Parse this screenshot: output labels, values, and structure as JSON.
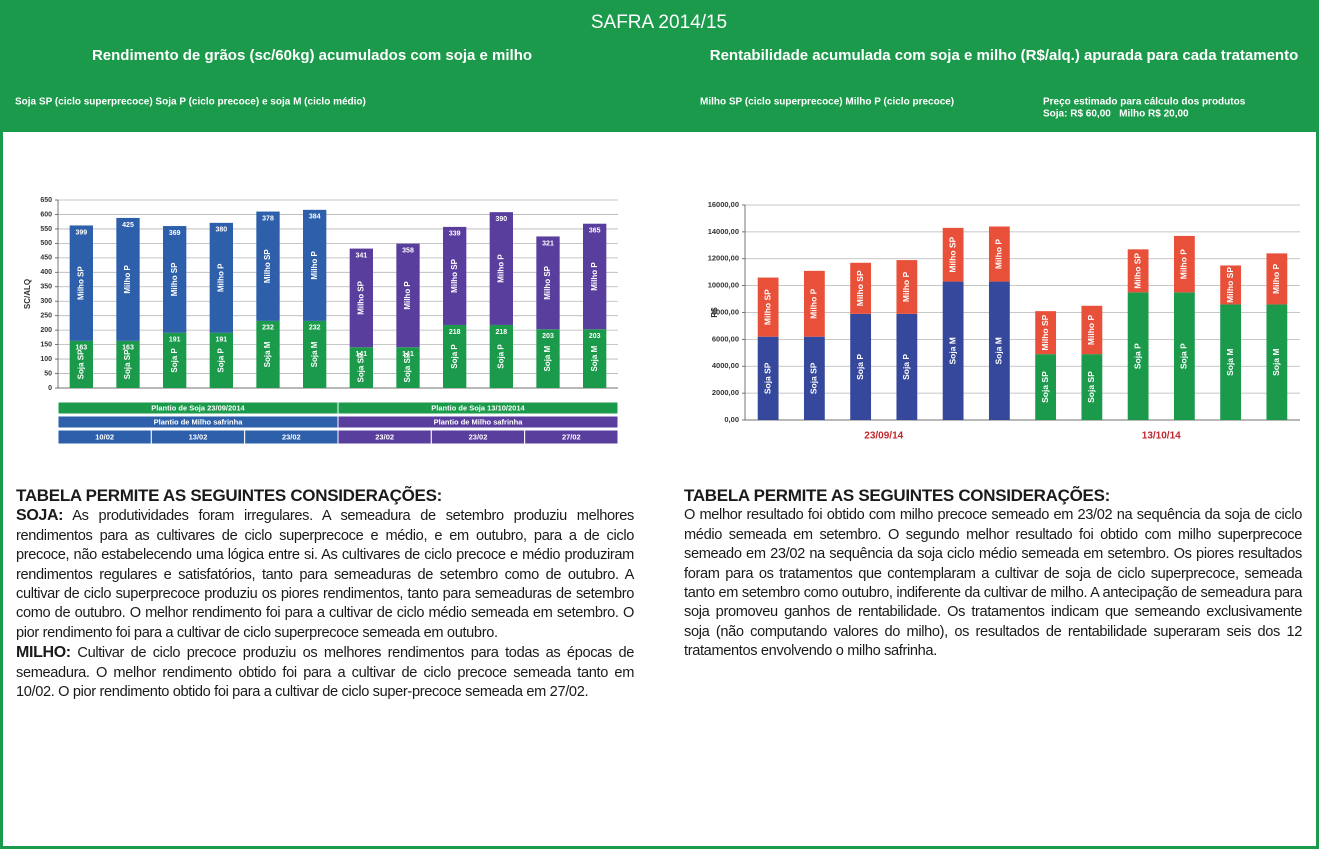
{
  "header": {
    "title": "SAFRA 2014/15",
    "left_subtitle": "Rendimento de grãos (sc/60kg) acumulados com soja e milho",
    "right_subtitle": "Rentabilidade acumulada com soja e milho (R$/alq.) apurada para cada tratamento",
    "left_note": "Soja SP (ciclo superprecoce) Soja P (ciclo precoce) e soja M (ciclo médio)",
    "right_note": "Milho SP (ciclo superprecoce) Milho P (ciclo precoce)",
    "price_note": [
      "Preço estimado para cálculo dos produtos",
      "Soja: R$ 60,00   Milho R$ 20,00"
    ]
  },
  "chart_data": [
    {
      "type": "stacked_bar",
      "ylabel": "SC/ALQ",
      "ylim": [
        0,
        650
      ],
      "yticks": [
        0,
        50,
        100,
        150,
        200,
        250,
        300,
        350,
        400,
        450,
        500,
        550,
        600,
        650
      ],
      "grid": true,
      "show_values": true,
      "series": [
        {
          "color": "#1b9a4b",
          "values": [
            163,
            163,
            191,
            191,
            232,
            232,
            141,
            141,
            218,
            218,
            203,
            203
          ],
          "labels": [
            "Soja SP",
            "Soja SP",
            "Soja P",
            "Soja P",
            "Soja M",
            "Soja M",
            "Soja SP",
            "Soja SP",
            "Soja P",
            "Soja P",
            "Soja M",
            "Soja M"
          ]
        },
        {
          "colors": [
            "#2d5faa",
            "#2d5faa",
            "#2d5faa",
            "#2d5faa",
            "#2d5faa",
            "#2d5faa",
            "#5a3e9e",
            "#5a3e9e",
            "#5a3e9e",
            "#5a3e9e",
            "#5a3e9e",
            "#5a3e9e"
          ],
          "values": [
            399,
            425,
            369,
            380,
            378,
            384,
            341,
            358,
            339,
            390,
            321,
            365
          ],
          "labels": [
            "Milho SP",
            "Milho P",
            "Milho SP",
            "Milho P",
            "Milho SP",
            "Milho P",
            "Milho SP",
            "Milho P",
            "Milho SP",
            "Milho P",
            "Milho SP",
            "Milho P"
          ]
        }
      ],
      "table_rows": [
        [
          "Plantio de Soja  23/09/2014",
          "Plantio de Soja  13/10/2014"
        ],
        [
          "Plantio de Milho safrinha",
          "Plantio de Milho safrinha"
        ],
        [
          "10/02",
          "13/02",
          "23/02",
          "23/02",
          "23/02",
          "27/02"
        ]
      ]
    },
    {
      "type": "stacked_bar",
      "ylabel": "R$",
      "ylim": [
        0,
        16000
      ],
      "yticks": [
        {
          "value": 0,
          "label": "0,00"
        },
        {
          "value": 2000,
          "label": "2000,00"
        },
        {
          "value": 4000,
          "label": "4000,00"
        },
        {
          "value": 6000,
          "label": "6000,00"
        },
        {
          "value": 8000,
          "label": "8000,00"
        },
        {
          "value": 10000,
          "label": "10000,00"
        },
        {
          "value": 12000,
          "label": "12000,00"
        },
        {
          "value": 14000,
          "label": "14000,00"
        },
        {
          "value": 16000,
          "label": "16000,00"
        }
      ],
      "grid": true,
      "show_values": false,
      "series": [
        {
          "colors": [
            "#35489b",
            "#35489b",
            "#35489b",
            "#35489b",
            "#35489b",
            "#35489b",
            "#1b9a4b",
            "#1b9a4b",
            "#1b9a4b",
            "#1b9a4b",
            "#1b9a4b",
            "#1b9a4b"
          ],
          "values": [
            6200,
            6200,
            7900,
            7900,
            10300,
            10300,
            4900,
            4900,
            9500,
            9500,
            8600,
            8600
          ],
          "labels": [
            "Soja SP",
            "Soja SP",
            "Soja P",
            "Soja P",
            "Soja M",
            "Soja M",
            "Soja SP",
            "Soja SP",
            "Soja P",
            "Soja P",
            "Soja M",
            "Soja M"
          ]
        },
        {
          "color": "#e8503a",
          "values": [
            4400,
            4900,
            3800,
            4000,
            4000,
            4100,
            3200,
            3600,
            3200,
            4200,
            2900,
            3800
          ],
          "labels": [
            "Milho SP",
            "Milho P",
            "Milho SP",
            "Milho P",
            "Milho SP",
            "Milho P",
            "Milho SP",
            "Milho P",
            "Milho SP",
            "Milho P",
            "Milho SP",
            "Milho P"
          ]
        }
      ],
      "group_labels": [
        "23/09/14",
        "13/10/14"
      ],
      "group_label_color": "#c0272d"
    }
  ],
  "left_text": {
    "heading": "TABELA PERMITE AS SEGUINTES CONSIDERAÇÕES:",
    "soja_label": "SOJA:",
    "soja_text": "As produtividades foram irregulares. A semeadura de setembro produziu melhores rendimentos para as cultivares de ciclo superprecoce e médio, e em outubro, para a de ciclo precoce, não estabelecendo uma lógica entre si. As cultivares de ciclo precoce e médio produziram rendimentos regulares e satisfatórios, tanto para semeaduras de setembro como de outubro. A cultivar de ciclo superprecoce produziu os piores rendimentos, tanto para semeaduras de setembro como de outubro. O melhor rendimento foi para a cultivar de ciclo médio semeada em setembro. O pior rendimento foi para a cultivar de ciclo superprecoce semeada em outubro.",
    "milho_label": "MILHO:",
    "milho_text": "Cultivar de ciclo precoce produziu os melhores rendimentos para todas as épocas de semeadura. O melhor rendimento obtido foi para a cultivar de ciclo precoce semeada tanto em 10/02. O pior rendimento obtido foi para a cultivar de ciclo super-precoce semeada em 27/02."
  },
  "right_text": {
    "heading": "TABELA PERMITE AS SEGUINTES CONSIDERAÇÕES:",
    "text": "O melhor resultado foi obtido com milho precoce semeado em 23/02 na sequência da soja de ciclo médio semeada em setembro. O segundo melhor resultado foi obtido com milho superprecoce semeado em 23/02 na sequência da soja ciclo médio semeada em setembro. Os piores resultados foram para os tratamentos que contemplaram a cultivar de soja de ciclo superprecoce, semeada tanto em setembro como outubro, indiferente da cultivar de milho. A antecipação de semeadura para soja promoveu ganhos de rentabilidade. Os tratamentos indicam que semeando exclusivamente soja (não computando valores do milho), os resultados de rentabilidade superaram seis dos 12 tratamentos envolvendo o milho safrinha."
  }
}
